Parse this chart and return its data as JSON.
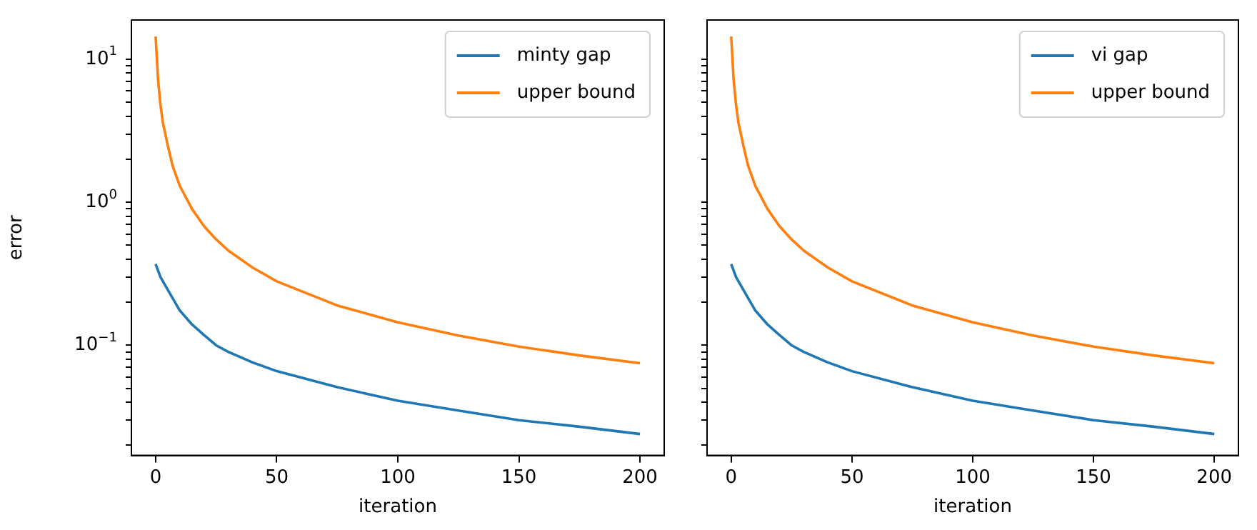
{
  "chart_data": [
    {
      "type": "line",
      "xlabel": "iteration",
      "ylabel": "error",
      "log": "y",
      "legend": "top right",
      "grid": false,
      "xlim": [
        -10,
        210
      ],
      "xticks": [
        0,
        50,
        100,
        150,
        200
      ],
      "ylim": [
        0.017,
        18.8
      ],
      "yticks": [
        {
          "value": 0.02,
          "label": null
        },
        {
          "value": 0.03,
          "label": null
        },
        {
          "value": 0.04,
          "label": null
        },
        {
          "value": 0.05,
          "label": null
        },
        {
          "value": 0.06,
          "label": null
        },
        {
          "value": 0.07,
          "label": null
        },
        {
          "value": 0.08,
          "label": null
        },
        {
          "value": 0.09,
          "label": null
        },
        {
          "value": 0.1,
          "label": "10$^{−1}$"
        },
        {
          "value": 0.2,
          "label": null
        },
        {
          "value": 0.3,
          "label": null
        },
        {
          "value": 0.4,
          "label": null
        },
        {
          "value": 0.5,
          "label": null
        },
        {
          "value": 0.6,
          "label": null
        },
        {
          "value": 0.7,
          "label": null
        },
        {
          "value": 0.8,
          "label": null
        },
        {
          "value": 0.9,
          "label": null
        },
        {
          "value": 1,
          "label": "10$^{0}$"
        },
        {
          "value": 2,
          "label": null
        },
        {
          "value": 3,
          "label": null
        },
        {
          "value": 4,
          "label": null
        },
        {
          "value": 5,
          "label": null
        },
        {
          "value": 6,
          "label": null
        },
        {
          "value": 7,
          "label": null
        },
        {
          "value": 8,
          "label": null
        },
        {
          "value": 9,
          "label": null
        },
        {
          "value": 10,
          "label": "10$^{1}$"
        }
      ],
      "series": [
        {
          "name": "minty gap",
          "color": "#1f77b4",
          "x": [
            0,
            2,
            5,
            10,
            15,
            20,
            25,
            30,
            40,
            50,
            75,
            100,
            125,
            150,
            175,
            200
          ],
          "values": [
            0.37,
            0.3,
            0.245,
            0.175,
            0.14,
            0.118,
            0.1,
            0.09,
            0.076,
            0.066,
            0.051,
            0.041,
            0.035,
            0.03,
            0.027,
            0.024
          ]
        },
        {
          "name": "upper bound",
          "color": "#ff7f0e",
          "x": [
            0,
            1,
            2,
            3,
            5,
            7,
            10,
            15,
            20,
            25,
            30,
            40,
            50,
            75,
            100,
            125,
            150,
            175,
            200
          ],
          "values": [
            14.4,
            7.2,
            4.8,
            3.6,
            2.5,
            1.8,
            1.3,
            0.9,
            0.68,
            0.55,
            0.46,
            0.35,
            0.28,
            0.19,
            0.145,
            0.117,
            0.098,
            0.085,
            0.075
          ]
        }
      ]
    },
    {
      "type": "line",
      "xlabel": "iteration",
      "log": "y",
      "legend": "top right",
      "grid": false,
      "tick_labels": "x",
      "xlim": [
        -10,
        210
      ],
      "xticks": [
        0,
        50,
        100,
        150,
        200
      ],
      "ylim": [
        0.017,
        18.8
      ],
      "yticks": [
        {
          "value": 0.02,
          "label": null
        },
        {
          "value": 0.03,
          "label": null
        },
        {
          "value": 0.04,
          "label": null
        },
        {
          "value": 0.05,
          "label": null
        },
        {
          "value": 0.06,
          "label": null
        },
        {
          "value": 0.07,
          "label": null
        },
        {
          "value": 0.08,
          "label": null
        },
        {
          "value": 0.09,
          "label": null
        },
        {
          "value": 0.1,
          "label": null
        },
        {
          "value": 0.2,
          "label": null
        },
        {
          "value": 0.3,
          "label": null
        },
        {
          "value": 0.4,
          "label": null
        },
        {
          "value": 0.5,
          "label": null
        },
        {
          "value": 0.6,
          "label": null
        },
        {
          "value": 0.7,
          "label": null
        },
        {
          "value": 0.8,
          "label": null
        },
        {
          "value": 0.9,
          "label": null
        },
        {
          "value": 1,
          "label": null
        },
        {
          "value": 2,
          "label": null
        },
        {
          "value": 3,
          "label": null
        },
        {
          "value": 4,
          "label": null
        },
        {
          "value": 5,
          "label": null
        },
        {
          "value": 6,
          "label": null
        },
        {
          "value": 7,
          "label": null
        },
        {
          "value": 8,
          "label": null
        },
        {
          "value": 9,
          "label": null
        },
        {
          "value": 10,
          "label": null
        }
      ],
      "series": [
        {
          "name": "vi gap",
          "color": "#1f77b4",
          "x": [
            0,
            2,
            5,
            10,
            15,
            20,
            25,
            30,
            40,
            50,
            75,
            100,
            125,
            150,
            175,
            200
          ],
          "values": [
            0.37,
            0.3,
            0.245,
            0.175,
            0.14,
            0.118,
            0.1,
            0.09,
            0.076,
            0.066,
            0.051,
            0.041,
            0.035,
            0.03,
            0.027,
            0.024
          ]
        },
        {
          "name": "upper bound",
          "color": "#ff7f0e",
          "x": [
            0,
            1,
            2,
            3,
            5,
            7,
            10,
            15,
            20,
            25,
            30,
            40,
            50,
            75,
            100,
            125,
            150,
            175,
            200
          ],
          "values": [
            14.4,
            7.2,
            4.8,
            3.6,
            2.5,
            1.8,
            1.3,
            0.9,
            0.68,
            0.55,
            0.46,
            0.35,
            0.28,
            0.19,
            0.145,
            0.117,
            0.098,
            0.085,
            0.075
          ]
        }
      ]
    }
  ]
}
